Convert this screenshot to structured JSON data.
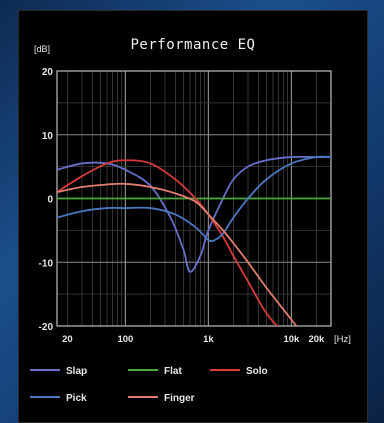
{
  "chart_data": {
    "type": "line",
    "title": "Performance EQ",
    "ylabel": "[dB]",
    "xlabel": "[Hz]",
    "xscale": "log",
    "xlim": [
      15,
      30000
    ],
    "ylim": [
      -20,
      20
    ],
    "yticks": [
      20,
      10,
      0,
      -10,
      -20
    ],
    "xtick_labels": [
      {
        "v": 20,
        "label": "20"
      },
      {
        "v": 100,
        "label": "100"
      },
      {
        "v": 1000,
        "label": "1k"
      },
      {
        "v": 10000,
        "label": "10k"
      },
      {
        "v": 20000,
        "label": "20k"
      }
    ],
    "grid": true,
    "legend_position": "bottom",
    "series": [
      {
        "name": "Slap",
        "color": "#6670c8",
        "x": [
          15,
          30,
          60,
          100,
          200,
          350,
          500,
          600,
          800,
          1000,
          1500,
          2000,
          3000,
          5000,
          10000,
          20000,
          30000
        ],
        "y": [
          4.5,
          5.5,
          5.5,
          4.5,
          2,
          -3,
          -8,
          -11.5,
          -9,
          -5,
          0,
          3,
          5,
          6,
          6.5,
          6.5,
          6.5
        ]
      },
      {
        "name": "Flat",
        "color": "#4caa3c",
        "x": [
          15,
          30000
        ],
        "y": [
          0,
          0
        ]
      },
      {
        "name": "Solo",
        "color": "#d63a3a",
        "x": [
          15,
          30,
          60,
          100,
          200,
          400,
          700,
          1000,
          1500,
          2000,
          3000,
          5000,
          8000,
          10000
        ],
        "y": [
          1,
          3.5,
          5.5,
          6,
          5.5,
          3,
          0,
          -2.5,
          -6,
          -9,
          -13,
          -18,
          -21,
          -22
        ]
      },
      {
        "name": "Pick",
        "color": "#4a78c0",
        "x": [
          15,
          30,
          60,
          100,
          200,
          400,
          700,
          1000,
          1200,
          1500,
          2000,
          3000,
          5000,
          10000,
          20000,
          30000
        ],
        "y": [
          -3,
          -2,
          -1.5,
          -1.5,
          -1.5,
          -2.5,
          -4.5,
          -6.5,
          -6.5,
          -5.5,
          -3,
          0,
          3,
          5.5,
          6.5,
          6.5
        ]
      },
      {
        "name": "Finger",
        "color": "#e07f6e",
        "x": [
          15,
          30,
          60,
          100,
          200,
          400,
          700,
          1000,
          1500,
          2000,
          3000,
          5000,
          10000,
          15000
        ],
        "y": [
          1,
          1.8,
          2.2,
          2.3,
          1.8,
          0.8,
          -0.5,
          -2.5,
          -5,
          -7,
          -10,
          -14,
          -19,
          -22
        ]
      }
    ],
    "legend_rows": [
      [
        "Slap",
        "Flat",
        "Solo"
      ],
      [
        "Pick",
        "Finger"
      ]
    ]
  }
}
